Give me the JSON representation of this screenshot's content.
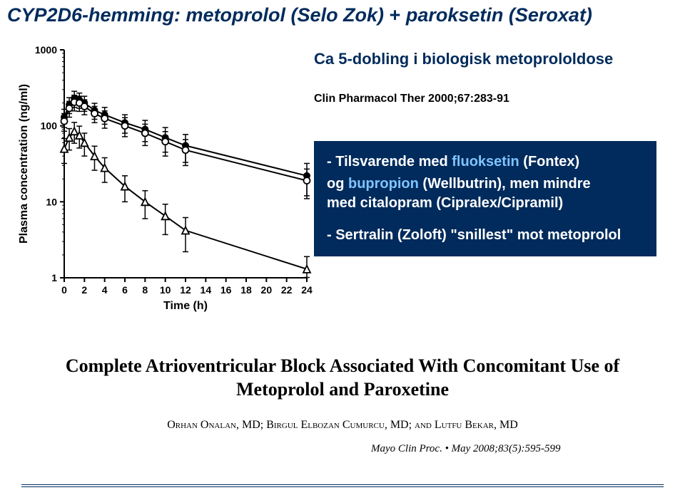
{
  "title_parts": {
    "a": "CYP2D6-hemming: ",
    "b": "metoprolol ",
    "c": "(Selo Zok) ",
    "plus": "+ ",
    "d": "paroksetin ",
    "e": "(Seroxat)"
  },
  "subtitle": "Ca 5-dobling i biologisk metoprololdose",
  "citation": "Clin Pharmacol Ther 2000;67:283-91",
  "infobox": {
    "r1a": "- Tilsvarende med ",
    "r1b": "fluoksetin ",
    "r1c": "(Fontex)",
    "r2a": "og ",
    "r2b": "bupropion ",
    "r2c": "(Wellbutrin), men mindre",
    "r3": "med citalopram (Cipralex/Cipramil)",
    "r4": "- Sertralin (Zoloft) \"snillest\" mot metoprolol"
  },
  "article_title": "Complete Atrioventricular Block Associated With Concomitant Use of Metoprolol and Paroxetine",
  "authors": "Orhan Onalan, MD; Birgul Elbozan Cumurcu, MD; and Lutfu Bekar, MD",
  "journal": "Mayo Clin Proc.    •    May 2008;83(5):595-599",
  "chart": {
    "type": "line-log",
    "xlabel": "Time (h)",
    "ylabel": "Plasma concentration (ng/ml)",
    "xlim": [
      0,
      24
    ],
    "ylim": [
      1,
      1000
    ],
    "xticks": [
      0,
      2,
      4,
      6,
      8,
      10,
      12,
      14,
      16,
      18,
      20,
      22,
      24
    ],
    "yticks": [
      1,
      10,
      100,
      1000
    ],
    "background_color": "#ffffff",
    "axis_color": "#000000",
    "series": [
      {
        "name": "top-filled",
        "marker": "filled-circle",
        "color": "#000000",
        "x": [
          0,
          0.5,
          1,
          1.5,
          2,
          3,
          4,
          6,
          8,
          10,
          12,
          24
        ],
        "y": [
          130,
          190,
          230,
          220,
          200,
          160,
          140,
          110,
          90,
          70,
          55,
          22
        ],
        "err": [
          35,
          45,
          55,
          50,
          45,
          38,
          35,
          30,
          28,
          25,
          22,
          10
        ]
      },
      {
        "name": "top-open",
        "marker": "open-circle",
        "color": "#000000",
        "x": [
          0,
          0.5,
          1,
          1.5,
          2,
          3,
          4,
          6,
          8,
          10,
          12,
          24
        ],
        "y": [
          115,
          170,
          205,
          200,
          180,
          145,
          125,
          100,
          80,
          62,
          48,
          19
        ],
        "err": [
          30,
          40,
          48,
          45,
          40,
          35,
          32,
          28,
          25,
          22,
          18,
          8
        ]
      },
      {
        "name": "bottom-open",
        "marker": "open-triangle",
        "color": "#000000",
        "x": [
          0,
          0.5,
          1,
          1.5,
          2,
          3,
          4,
          6,
          8,
          10,
          12,
          24
        ],
        "y": [
          50,
          70,
          85,
          75,
          60,
          40,
          28,
          16,
          10,
          6.5,
          4.2,
          1.3
        ],
        "err": [
          18,
          22,
          26,
          24,
          20,
          14,
          10,
          6,
          4,
          2.8,
          2,
          0.6
        ]
      }
    ]
  }
}
